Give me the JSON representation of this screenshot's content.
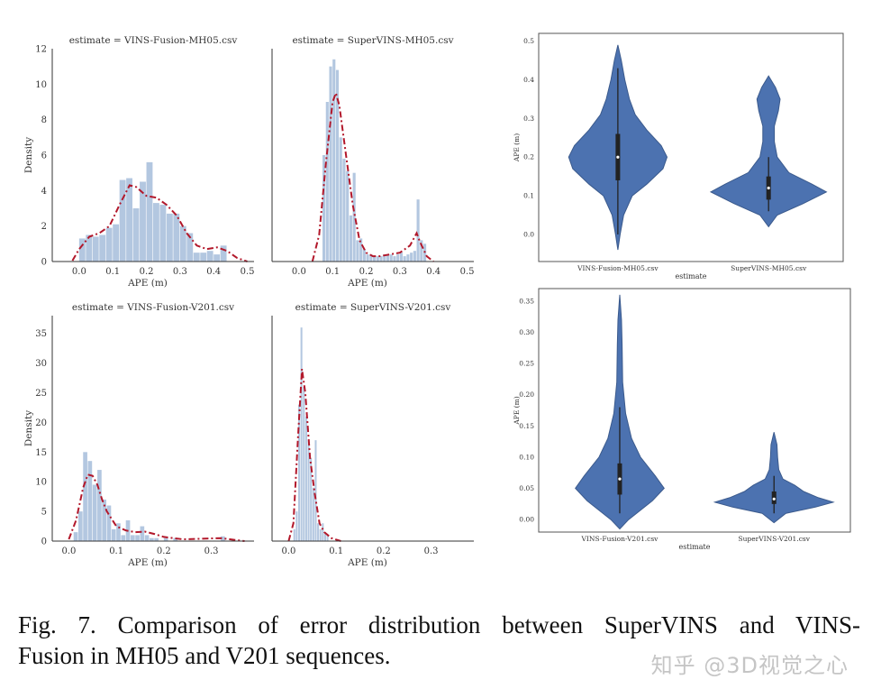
{
  "chart_data": [
    {
      "type": "histogram",
      "title": "estimate = VINS-Fusion-MH05.csv",
      "xlabel": "APE (m)",
      "ylabel": "Density",
      "xlim": [
        -0.08,
        0.52
      ],
      "ylim": [
        0,
        12
      ],
      "xticks": [
        "0.0",
        "0.1",
        "0.2",
        "0.3",
        "0.4",
        "0.5"
      ],
      "xtick_values": [
        0.0,
        0.1,
        0.2,
        0.3,
        0.4,
        0.5
      ],
      "yticks": [
        "0",
        "2",
        "4",
        "6",
        "8",
        "10",
        "12"
      ],
      "ytick_values": [
        0,
        2,
        4,
        6,
        8,
        10,
        12
      ],
      "bin_width": 0.02,
      "bins": [
        {
          "x": 0.0,
          "y": 1.3
        },
        {
          "x": 0.02,
          "y": 1.5
        },
        {
          "x": 0.04,
          "y": 1.4
        },
        {
          "x": 0.06,
          "y": 1.5
        },
        {
          "x": 0.08,
          "y": 1.9
        },
        {
          "x": 0.1,
          "y": 2.1
        },
        {
          "x": 0.12,
          "y": 4.6
        },
        {
          "x": 0.14,
          "y": 4.7
        },
        {
          "x": 0.16,
          "y": 3.0
        },
        {
          "x": 0.18,
          "y": 4.5
        },
        {
          "x": 0.2,
          "y": 5.6
        },
        {
          "x": 0.22,
          "y": 3.3
        },
        {
          "x": 0.24,
          "y": 3.2
        },
        {
          "x": 0.26,
          "y": 2.7
        },
        {
          "x": 0.28,
          "y": 2.7
        },
        {
          "x": 0.3,
          "y": 2.0
        },
        {
          "x": 0.32,
          "y": 1.6
        },
        {
          "x": 0.34,
          "y": 0.5
        },
        {
          "x": 0.36,
          "y": 0.5
        },
        {
          "x": 0.38,
          "y": 0.6
        },
        {
          "x": 0.4,
          "y": 0.4
        },
        {
          "x": 0.42,
          "y": 0.9
        }
      ],
      "kde": [
        [
          -0.02,
          0.05
        ],
        [
          0.0,
          0.7
        ],
        [
          0.03,
          1.4
        ],
        [
          0.06,
          1.6
        ],
        [
          0.09,
          2.0
        ],
        [
          0.12,
          3.2
        ],
        [
          0.15,
          4.3
        ],
        [
          0.17,
          4.2
        ],
        [
          0.2,
          3.7
        ],
        [
          0.23,
          3.6
        ],
        [
          0.26,
          3.2
        ],
        [
          0.29,
          2.6
        ],
        [
          0.32,
          1.6
        ],
        [
          0.35,
          0.9
        ],
        [
          0.38,
          0.7
        ],
        [
          0.41,
          0.8
        ],
        [
          0.44,
          0.6
        ],
        [
          0.47,
          0.2
        ],
        [
          0.5,
          0.0
        ]
      ]
    },
    {
      "type": "histogram",
      "title": "estimate = SuperVINS-MH05.csv",
      "xlabel": "APE (m)",
      "ylabel": "",
      "xlim": [
        -0.08,
        0.52
      ],
      "ylim": [
        0,
        12
      ],
      "xticks": [
        "0.0",
        "0.1",
        "0.2",
        "0.3",
        "0.4",
        "0.5"
      ],
      "xtick_values": [
        0.0,
        0.1,
        0.2,
        0.3,
        0.4,
        0.5
      ],
      "yticks": [],
      "ytick_values": [],
      "bin_width": 0.01,
      "bins": [
        {
          "x": 0.07,
          "y": 6.0
        },
        {
          "x": 0.08,
          "y": 9.0
        },
        {
          "x": 0.09,
          "y": 11.0
        },
        {
          "x": 0.1,
          "y": 11.4
        },
        {
          "x": 0.11,
          "y": 10.8
        },
        {
          "x": 0.12,
          "y": 7.0
        },
        {
          "x": 0.13,
          "y": 5.8
        },
        {
          "x": 0.14,
          "y": 5.1
        },
        {
          "x": 0.15,
          "y": 2.6
        },
        {
          "x": 0.16,
          "y": 5.0
        },
        {
          "x": 0.17,
          "y": 1.2
        },
        {
          "x": 0.18,
          "y": 1.3
        },
        {
          "x": 0.19,
          "y": 0.7
        },
        {
          "x": 0.2,
          "y": 0.4
        },
        {
          "x": 0.21,
          "y": 0.4
        },
        {
          "x": 0.22,
          "y": 0.3
        },
        {
          "x": 0.23,
          "y": 0.3
        },
        {
          "x": 0.24,
          "y": 0.3
        },
        {
          "x": 0.25,
          "y": 0.4
        },
        {
          "x": 0.26,
          "y": 0.4
        },
        {
          "x": 0.27,
          "y": 0.4
        },
        {
          "x": 0.28,
          "y": 0.3
        },
        {
          "x": 0.29,
          "y": 0.4
        },
        {
          "x": 0.3,
          "y": 0.5
        },
        {
          "x": 0.31,
          "y": 0.3
        },
        {
          "x": 0.32,
          "y": 0.4
        },
        {
          "x": 0.33,
          "y": 0.5
        },
        {
          "x": 0.34,
          "y": 0.6
        },
        {
          "x": 0.35,
          "y": 3.5
        },
        {
          "x": 0.36,
          "y": 1.2
        },
        {
          "x": 0.37,
          "y": 1.0
        }
      ],
      "kde": [
        [
          0.04,
          0.0
        ],
        [
          0.06,
          1.5
        ],
        [
          0.08,
          5.5
        ],
        [
          0.1,
          9.0
        ],
        [
          0.11,
          9.5
        ],
        [
          0.12,
          8.8
        ],
        [
          0.14,
          6.0
        ],
        [
          0.16,
          3.2
        ],
        [
          0.18,
          1.2
        ],
        [
          0.2,
          0.5
        ],
        [
          0.22,
          0.3
        ],
        [
          0.24,
          0.3
        ],
        [
          0.27,
          0.4
        ],
        [
          0.3,
          0.5
        ],
        [
          0.33,
          0.9
        ],
        [
          0.35,
          1.6
        ],
        [
          0.36,
          1.1
        ],
        [
          0.38,
          0.3
        ],
        [
          0.4,
          0.0
        ]
      ]
    },
    {
      "type": "histogram",
      "title": "estimate = VINS-Fusion-V201.csv",
      "xlabel": "APE (m)",
      "ylabel": "Density",
      "xlim": [
        -0.035,
        0.39
      ],
      "ylim": [
        0,
        38
      ],
      "xticks": [
        "0.0",
        "0.1",
        "0.2",
        "0.3"
      ],
      "xtick_values": [
        0.0,
        0.1,
        0.2,
        0.3
      ],
      "yticks": [
        "0",
        "5",
        "10",
        "15",
        "20",
        "25",
        "30",
        "35"
      ],
      "ytick_values": [
        0,
        5,
        10,
        15,
        20,
        25,
        30,
        35
      ],
      "bin_width": 0.01,
      "bins": [
        {
          "x": 0.01,
          "y": 1.5
        },
        {
          "x": 0.02,
          "y": 5.0
        },
        {
          "x": 0.03,
          "y": 15.0
        },
        {
          "x": 0.04,
          "y": 13.5
        },
        {
          "x": 0.05,
          "y": 9.5
        },
        {
          "x": 0.06,
          "y": 12.0
        },
        {
          "x": 0.07,
          "y": 7.0
        },
        {
          "x": 0.08,
          "y": 6.0
        },
        {
          "x": 0.09,
          "y": 2.0
        },
        {
          "x": 0.1,
          "y": 3.0
        },
        {
          "x": 0.11,
          "y": 1.0
        },
        {
          "x": 0.12,
          "y": 3.5
        },
        {
          "x": 0.13,
          "y": 1.0
        },
        {
          "x": 0.14,
          "y": 1.0
        },
        {
          "x": 0.15,
          "y": 2.5
        },
        {
          "x": 0.16,
          "y": 1.0
        },
        {
          "x": 0.17,
          "y": 0.5
        },
        {
          "x": 0.18,
          "y": 0.5
        },
        {
          "x": 0.2,
          "y": 0.5
        },
        {
          "x": 0.22,
          "y": 0.5
        },
        {
          "x": 0.32,
          "y": 0.8
        }
      ],
      "kde": [
        [
          0.0,
          0.3
        ],
        [
          0.015,
          3.5
        ],
        [
          0.03,
          9.0
        ],
        [
          0.04,
          11.2
        ],
        [
          0.05,
          11.0
        ],
        [
          0.06,
          9.5
        ],
        [
          0.07,
          7.0
        ],
        [
          0.08,
          5.0
        ],
        [
          0.1,
          2.5
        ],
        [
          0.12,
          1.8
        ],
        [
          0.14,
          1.5
        ],
        [
          0.16,
          1.6
        ],
        [
          0.18,
          1.2
        ],
        [
          0.2,
          0.7
        ],
        [
          0.24,
          0.3
        ],
        [
          0.28,
          0.4
        ],
        [
          0.32,
          0.5
        ],
        [
          0.35,
          0.2
        ],
        [
          0.37,
          0.0
        ]
      ]
    },
    {
      "type": "histogram",
      "title": "estimate = SuperVINS-V201.csv",
      "xlabel": "APE (m)",
      "ylabel": "",
      "xlim": [
        -0.035,
        0.39
      ],
      "ylim": [
        0,
        38
      ],
      "xticks": [
        "0.0",
        "0.1",
        "0.2",
        "0.3"
      ],
      "xtick_values": [
        0.0,
        0.1,
        0.2,
        0.3
      ],
      "yticks": [],
      "ytick_values": [],
      "bin_width": 0.005,
      "bins": [
        {
          "x": 0.01,
          "y": 2.0
        },
        {
          "x": 0.015,
          "y": 5.0
        },
        {
          "x": 0.02,
          "y": 23.0
        },
        {
          "x": 0.025,
          "y": 36.0
        },
        {
          "x": 0.03,
          "y": 26.0
        },
        {
          "x": 0.035,
          "y": 21.0
        },
        {
          "x": 0.04,
          "y": 17.0
        },
        {
          "x": 0.045,
          "y": 14.0
        },
        {
          "x": 0.05,
          "y": 9.0
        },
        {
          "x": 0.055,
          "y": 17.0
        },
        {
          "x": 0.06,
          "y": 3.0
        },
        {
          "x": 0.065,
          "y": 2.0
        },
        {
          "x": 0.07,
          "y": 3.0
        },
        {
          "x": 0.075,
          "y": 1.5
        },
        {
          "x": 0.08,
          "y": 1.0
        }
      ],
      "kde": [
        [
          0.0,
          0.0
        ],
        [
          0.01,
          3.0
        ],
        [
          0.02,
          18.0
        ],
        [
          0.028,
          29.0
        ],
        [
          0.035,
          25.0
        ],
        [
          0.045,
          14.0
        ],
        [
          0.055,
          8.0
        ],
        [
          0.065,
          3.0
        ],
        [
          0.075,
          1.5
        ],
        [
          0.09,
          0.5
        ],
        [
          0.11,
          0.0
        ]
      ]
    },
    {
      "type": "violin",
      "xlabel": "estimate",
      "ylabel": "APE (m)",
      "ylim": [
        -0.07,
        0.52
      ],
      "yticks": [
        "0.0",
        "0.1",
        "0.2",
        "0.3",
        "0.4",
        "0.5"
      ],
      "ytick_values": [
        0.0,
        0.1,
        0.2,
        0.3,
        0.4,
        0.5
      ],
      "categories": [
        "VINS-Fusion-MH05.csv",
        "SuperVINS-MH05.csv"
      ],
      "violins": [
        {
          "ymin": -0.04,
          "ymax": 0.49,
          "q1": 0.14,
          "median": 0.2,
          "q3": 0.26,
          "whisker_low": 0.0,
          "whisker_high": 0.43,
          "profile": [
            [
              -0.04,
              0.0
            ],
            [
              0.0,
              0.04
            ],
            [
              0.05,
              0.1
            ],
            [
              0.1,
              0.25
            ],
            [
              0.13,
              0.5
            ],
            [
              0.17,
              0.78
            ],
            [
              0.2,
              0.85
            ],
            [
              0.23,
              0.75
            ],
            [
              0.27,
              0.5
            ],
            [
              0.31,
              0.3
            ],
            [
              0.35,
              0.2
            ],
            [
              0.4,
              0.12
            ],
            [
              0.45,
              0.06
            ],
            [
              0.49,
              0.0
            ]
          ]
        },
        {
          "ymin": 0.02,
          "ymax": 0.41,
          "q1": 0.09,
          "median": 0.12,
          "q3": 0.15,
          "whisker_low": 0.06,
          "whisker_high": 0.2,
          "profile": [
            [
              0.02,
              0.0
            ],
            [
              0.05,
              0.15
            ],
            [
              0.08,
              0.6
            ],
            [
              0.11,
              1.0
            ],
            [
              0.13,
              0.75
            ],
            [
              0.16,
              0.35
            ],
            [
              0.2,
              0.15
            ],
            [
              0.24,
              0.1
            ],
            [
              0.28,
              0.1
            ],
            [
              0.32,
              0.17
            ],
            [
              0.35,
              0.2
            ],
            [
              0.38,
              0.12
            ],
            [
              0.41,
              0.0
            ]
          ]
        }
      ]
    },
    {
      "type": "violin",
      "xlabel": "estimate",
      "ylabel": "APE (m)",
      "ylim": [
        -0.02,
        0.37
      ],
      "yticks": [
        "0.00",
        "0.05",
        "0.10",
        "0.15",
        "0.20",
        "0.25",
        "0.30",
        "0.35"
      ],
      "ytick_values": [
        0.0,
        0.05,
        0.1,
        0.15,
        0.2,
        0.25,
        0.3,
        0.35
      ],
      "categories": [
        "VINS-Fusion-V201.csv",
        "SuperVINS-V201.csv"
      ],
      "violins": [
        {
          "ymin": -0.015,
          "ymax": 0.36,
          "q1": 0.04,
          "median": 0.065,
          "q3": 0.09,
          "whisker_low": 0.01,
          "whisker_high": 0.18,
          "profile": [
            [
              -0.015,
              0.0
            ],
            [
              0.0,
              0.15
            ],
            [
              0.03,
              0.55
            ],
            [
              0.05,
              0.75
            ],
            [
              0.07,
              0.6
            ],
            [
              0.1,
              0.35
            ],
            [
              0.13,
              0.2
            ],
            [
              0.17,
              0.1
            ],
            [
              0.22,
              0.05
            ],
            [
              0.28,
              0.04
            ],
            [
              0.32,
              0.03
            ],
            [
              0.36,
              0.0
            ]
          ]
        },
        {
          "ymin": -0.005,
          "ymax": 0.14,
          "q1": 0.025,
          "median": 0.033,
          "q3": 0.045,
          "whisker_low": 0.01,
          "whisker_high": 0.07,
          "profile": [
            [
              -0.005,
              0.0
            ],
            [
              0.01,
              0.2
            ],
            [
              0.02,
              0.7
            ],
            [
              0.028,
              1.0
            ],
            [
              0.035,
              0.75
            ],
            [
              0.045,
              0.5
            ],
            [
              0.055,
              0.35
            ],
            [
              0.065,
              0.15
            ],
            [
              0.08,
              0.08
            ],
            [
              0.1,
              0.06
            ],
            [
              0.12,
              0.05
            ],
            [
              0.14,
              0.0
            ]
          ]
        }
      ]
    }
  ],
  "caption": {
    "line1": "Fig. 7.   Comparison of error distribution between SuperVINS and VINS-",
    "line2": "Fusion in MH05 and V201 sequences."
  },
  "watermark": "知乎 @3D视觉之心",
  "colors": {
    "bar_fill": "#a6bddb",
    "kde_line": "#b2182b",
    "violin_fill": "#4c72b0",
    "axis": "#333333",
    "box": "#222222"
  }
}
